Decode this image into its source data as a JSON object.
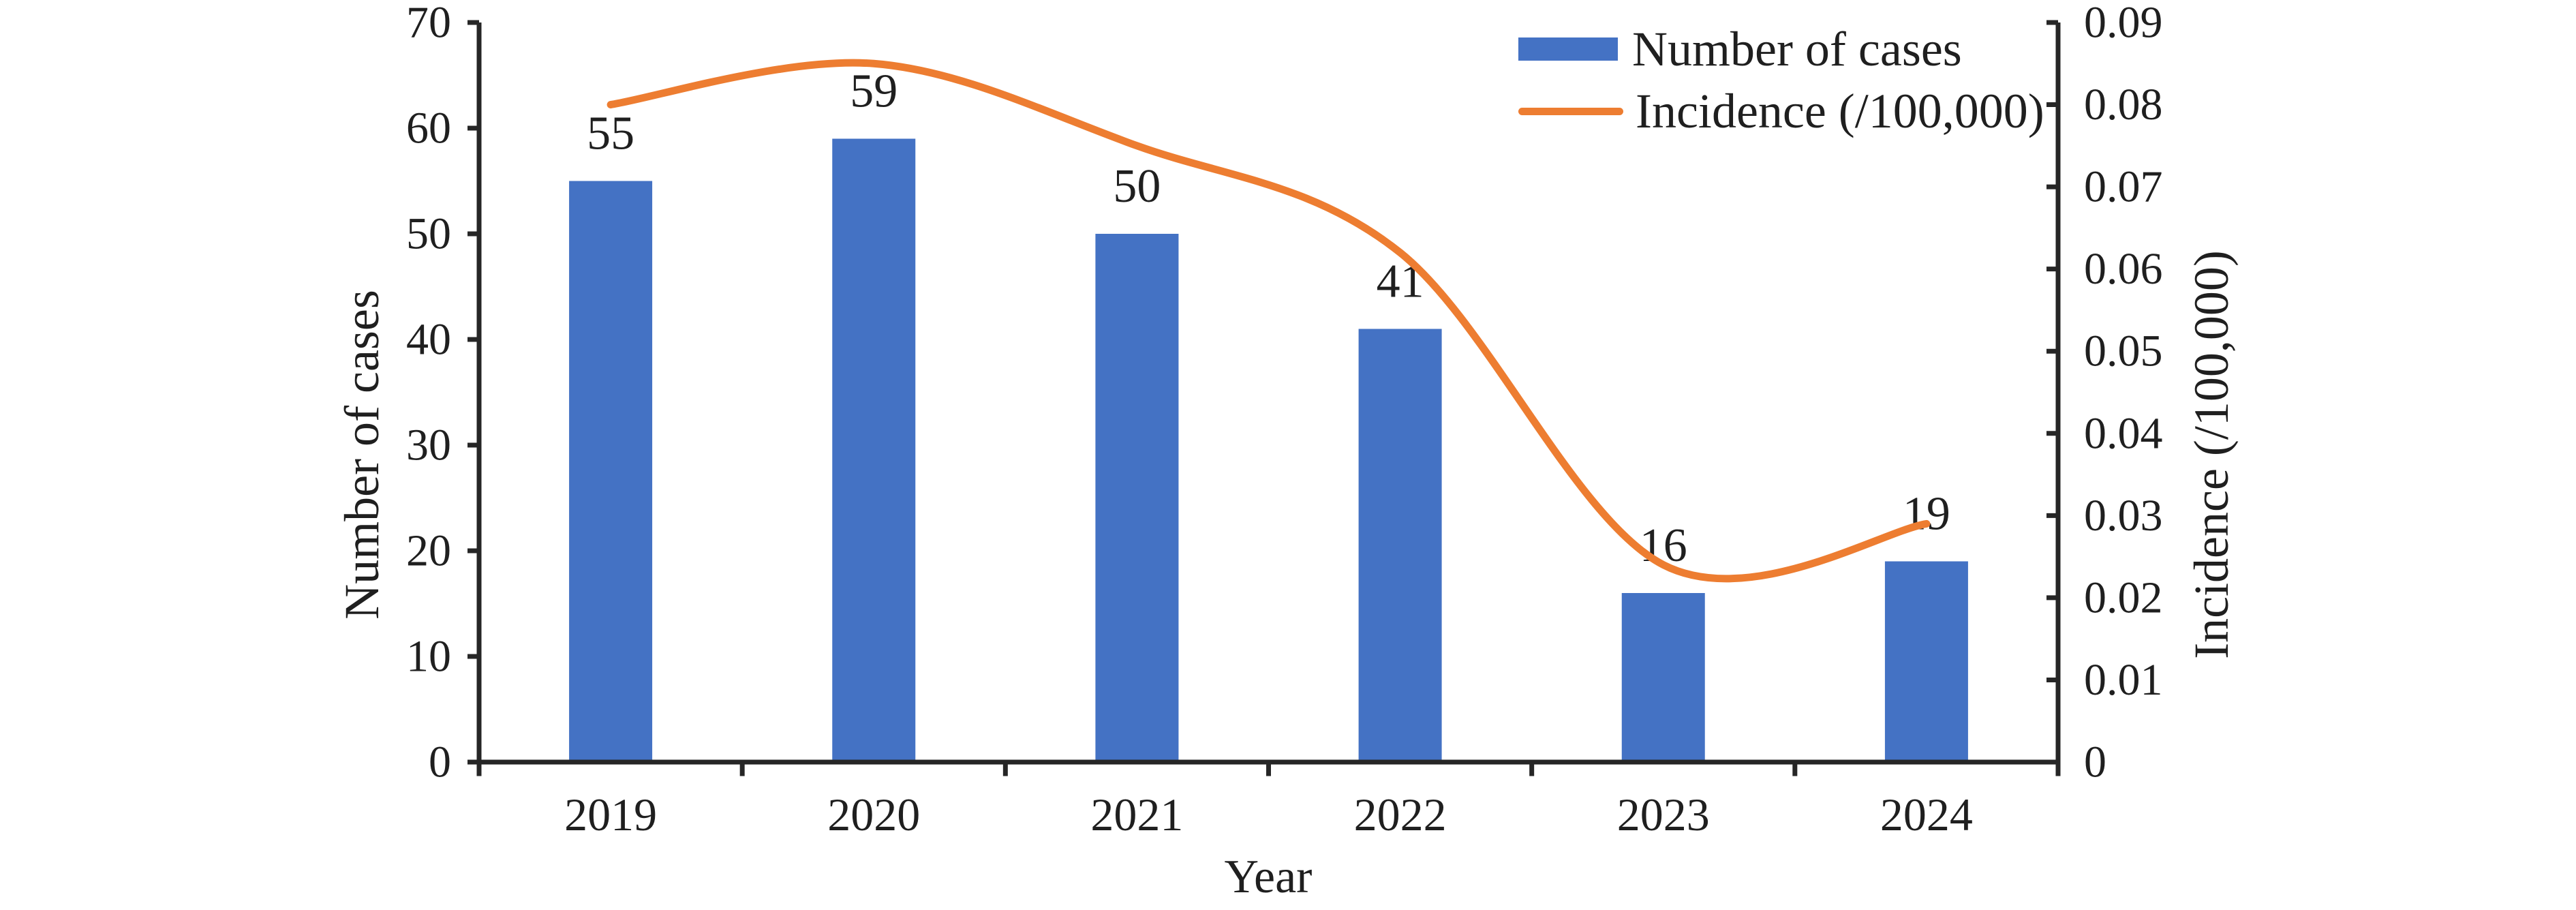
{
  "chart_data": {
    "type": "combo",
    "categories": [
      "2019",
      "2020",
      "2021",
      "2022",
      "2023",
      "2024"
    ],
    "series": [
      {
        "name": "Number of cases",
        "type": "bar",
        "axis": "left",
        "color": "#4472C4",
        "values": [
          55,
          59,
          50,
          41,
          16,
          19
        ]
      },
      {
        "name": "Incidence (/100,000)",
        "type": "line",
        "axis": "right",
        "color": "#ED7D31",
        "values": [
          0.08,
          0.085,
          0.075,
          0.062,
          0.024,
          0.029
        ]
      }
    ],
    "bar_value_labels": [
      "55",
      "59",
      "50",
      "41",
      "16",
      "19"
    ],
    "left_axis": {
      "label": "Number of cases",
      "min": 0,
      "max": 70,
      "ticks": [
        "0",
        "10",
        "20",
        "30",
        "40",
        "50",
        "60",
        "70"
      ]
    },
    "right_axis": {
      "label": "Incidence (/100,000)",
      "min": 0,
      "max": 0.09,
      "ticks": [
        "0",
        "0.01",
        "0.02",
        "0.03",
        "0.04",
        "0.05",
        "0.06",
        "0.07",
        "0.08",
        "0.09"
      ]
    },
    "x_axis": {
      "label": "Year"
    },
    "legend_position": "top-right",
    "grid": false,
    "background": "#ffffff",
    "text_color": "#1f1f1f",
    "axis_color": "#262626"
  }
}
